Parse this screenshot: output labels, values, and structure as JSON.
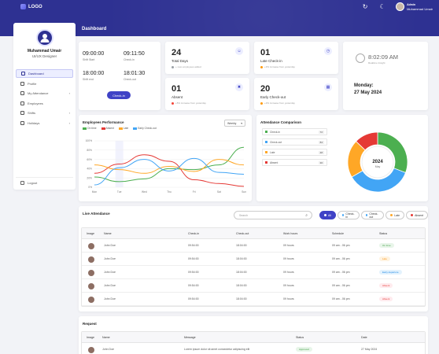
{
  "brand": {
    "name": "LOGO"
  },
  "header": {
    "role": "Admin",
    "user": "Muhammad Umair",
    "page_title": "Dashboard"
  },
  "profile": {
    "name": "Muhammad Umair",
    "role": "UI/UX Designer"
  },
  "nav": [
    {
      "label": "Dashboard",
      "active": true
    },
    {
      "label": "Profile"
    },
    {
      "label": "My Attendance",
      "chevron": true
    },
    {
      "label": "Employees"
    },
    {
      "label": "Shifts",
      "chevron": true
    },
    {
      "label": "Holidays",
      "chevron": true
    }
  ],
  "logout": "Logout",
  "shift": {
    "start": "09:00:00",
    "start_lbl": "Shift Start",
    "checkin": "09:11:50",
    "checkin_lbl": "Check-in",
    "end": "18:00:00",
    "end_lbl": "Shift end",
    "checkout": "18:01:30",
    "checkout_lbl": "Check-out",
    "button": "Check-in"
  },
  "stats": [
    {
      "num": "24",
      "label": "Total Days",
      "sub": "+ new employees added",
      "icon": "users-icon",
      "dot": "#9aa0a6"
    },
    {
      "num": "01",
      "label": "Late Check-in",
      "sub": "+3% increase from yesterday",
      "icon": "clock-search-icon",
      "dot": "#ff9800"
    },
    {
      "num": "01",
      "label": "Absent",
      "sub": "+5% increase from yesterday",
      "icon": "user-x-icon",
      "dot": "#f44336"
    },
    {
      "num": "20",
      "label": "Early Check-out",
      "sub": "+3% increase from yesterday",
      "icon": "calendar-icon",
      "dot": "#ff9800"
    }
  ],
  "clock": {
    "time": "8:02:09 AM",
    "sub": "Realtime Insight",
    "day": "Monday:",
    "date": "27 May 2024"
  },
  "performance": {
    "title": "Employees Performance",
    "period": "Weekly",
    "legend": [
      {
        "name": "On time",
        "color": "#4caf50"
      },
      {
        "name": "Absent",
        "color": "#e53935"
      },
      {
        "name": "Late",
        "color": "#ffa726"
      },
      {
        "name": "Early Check-out",
        "color": "#42a5f5"
      }
    ]
  },
  "chart_data": [
    {
      "type": "line",
      "title": "Employees Performance",
      "categories": [
        "Mon",
        "Tue",
        "Wed",
        "Thu",
        "Fri",
        "Sat",
        "Sun"
      ],
      "ylim": [
        0,
        100
      ],
      "yticks": [
        "100%",
        "80%",
        "60%",
        "40%",
        "20%",
        "0%"
      ],
      "series": [
        {
          "name": "On time",
          "color": "#4caf50",
          "values": [
            22,
            12,
            18,
            40,
            38,
            48,
            86
          ]
        },
        {
          "name": "Absent",
          "color": "#e53935",
          "values": [
            30,
            50,
            70,
            56,
            16,
            8,
            2
          ]
        },
        {
          "name": "Late",
          "color": "#ffa726",
          "values": [
            48,
            38,
            30,
            45,
            34,
            60,
            48
          ]
        },
        {
          "name": "Early Check-out",
          "color": "#42a5f5",
          "values": [
            5,
            42,
            60,
            35,
            62,
            32,
            28
          ]
        }
      ]
    },
    {
      "type": "pie",
      "title": "Attendance Comparison",
      "center_value": "2024",
      "center_label": "May",
      "series": [
        {
          "name": "Check-in",
          "value": 72,
          "color": "#4caf50"
        },
        {
          "name": "Check-out",
          "value": 84,
          "color": "#42a5f5"
        },
        {
          "name": "Late",
          "value": 48,
          "color": "#ffa726"
        },
        {
          "name": "Absent",
          "value": 30,
          "color": "#e53935"
        }
      ]
    }
  ],
  "comparison": {
    "title": "Attendance Comparison",
    "rows": [
      {
        "name": "Check-in",
        "value": "72",
        "color": "#4caf50"
      },
      {
        "name": "Check-out",
        "value": "84",
        "color": "#42a5f5"
      },
      {
        "name": "Late",
        "value": "48",
        "color": "#ffa726"
      },
      {
        "name": "Absent",
        "value": "30",
        "color": "#e53935"
      }
    ]
  },
  "live": {
    "title": "Live Attendance",
    "search_placeholder": "Search",
    "filters": [
      {
        "label": "All",
        "active": true,
        "color": "#ffffff"
      },
      {
        "label": "Check-in",
        "color": "#42a5f5"
      },
      {
        "label": "Check-out",
        "color": "#42a5f5"
      },
      {
        "label": "Late",
        "color": "#ffa726"
      },
      {
        "label": "Absent",
        "color": "#e53935"
      }
    ],
    "columns": [
      "Image",
      "Name",
      "Check-in",
      "Check-out",
      "Work hours",
      "Schedule",
      "Status"
    ],
    "rows": [
      {
        "name": "John Doe",
        "in": "09:54:00",
        "out": "18:04:00",
        "hours": "09 hours",
        "schedule": "09 am - 06 pm",
        "status": "On time",
        "sbg": "#e8f5e9",
        "sfg": "#43a047"
      },
      {
        "name": "John Doe",
        "in": "09:54:00",
        "out": "18:04:00",
        "hours": "09 hours",
        "schedule": "09 am - 06 pm",
        "status": "Late",
        "sbg": "#fff3e0",
        "sfg": "#fb8c00"
      },
      {
        "name": "John Doe",
        "in": "09:54:00",
        "out": "18:04:00",
        "hours": "09 hours",
        "schedule": "09 am - 06 pm",
        "status": "Early departure",
        "sbg": "#e3f2fd",
        "sfg": "#1e88e5"
      },
      {
        "name": "John Doe",
        "in": "09:54:00",
        "out": "18:04:00",
        "hours": "09 hours",
        "schedule": "09 am - 06 pm",
        "status": "Absent",
        "sbg": "#ffebee",
        "sfg": "#e53935"
      },
      {
        "name": "John Doe",
        "in": "09:54:00",
        "out": "18:04:00",
        "hours": "09 hours",
        "schedule": "09 am - 06 pm",
        "status": "Absent",
        "sbg": "#ffebee",
        "sfg": "#e53935"
      }
    ]
  },
  "request": {
    "title": "Request",
    "columns": [
      "Image",
      "Name",
      "Message",
      "Status",
      "Date"
    ],
    "rows": [
      {
        "name": "John Doe",
        "message": "Lorem ipsum dolor sit amet consectetur adipiscing elit",
        "status": "Approved",
        "date": "27 May 2024"
      }
    ]
  }
}
